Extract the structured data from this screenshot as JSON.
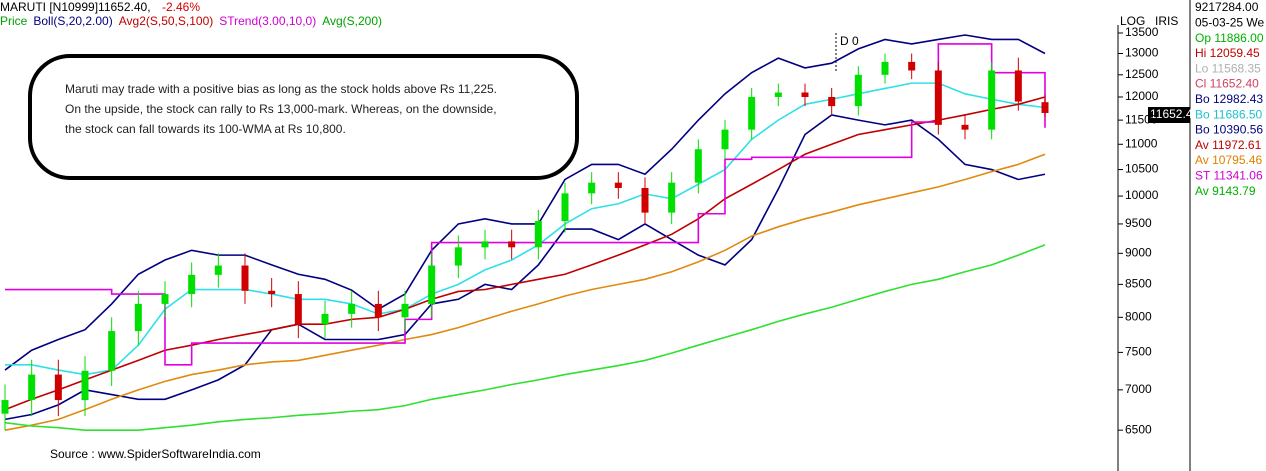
{
  "chart_data": {
    "type": "candlestick",
    "symbol": "MARUTI [N10999]11652.40,",
    "change": "-2.46%",
    "legend": [
      {
        "label": "Price",
        "color": "#00a000"
      },
      {
        "label": "Boll(S,20,2.00)",
        "color": "#000080"
      },
      {
        "label": "Avg2(S,50,S,100)",
        "color": "#c00000"
      },
      {
        "label": "STrend(3.00,10,0)",
        "color": "#d000d0"
      },
      {
        "label": "Avg(S,200)",
        "color": "#00a000"
      }
    ],
    "scale_labels": [
      "LOG",
      "IRIS"
    ],
    "marker": "D 0",
    "annotation": [
      "Maruti may trade with a positive bias as long as the stock holds above Rs 11,225.",
      "On the upside, the stock can rally to Rs 13,000-mark. Whereas, on the downside,",
      "the stock can fall towards its 100-WMA at Rs 10,800."
    ],
    "source": "Source : www.SpiderSoftwareIndia.com",
    "last_price": "11652.4",
    "info": [
      {
        "text": "9217284.00",
        "color": "#000000"
      },
      {
        "text": "05-03-25 We",
        "color": "#000000"
      },
      {
        "text": "Op 11886.00",
        "color": "#00b000"
      },
      {
        "text": "Hi 12059.45",
        "color": "#c00000"
      },
      {
        "text": "Lo 11568.35",
        "color": "#b0b0b0"
      },
      {
        "text": "Cl 11652.40",
        "color": "#d04060"
      },
      {
        "text": "Bo 12982.43",
        "color": "#000080"
      },
      {
        "text": "Bo 11686.50",
        "color": "#20c0d0"
      },
      {
        "text": "Bo 10390.56",
        "color": "#000080"
      },
      {
        "text": "Av 11972.61",
        "color": "#c00000"
      },
      {
        "text": "Av 10795.46",
        "color": "#e08000"
      },
      {
        "text": "ST 11341.06",
        "color": "#d000d0"
      },
      {
        "text": "Av  9143.79",
        "color": "#00b000"
      }
    ],
    "log_scale": true,
    "ylim": [
      6130,
      13700
    ],
    "yticks": [
      6500,
      7000,
      7500,
      8000,
      8500,
      9000,
      9500,
      10000,
      10500,
      11000,
      11500,
      12000,
      12500,
      13000,
      13500
    ],
    "up_color": "#00e000",
    "down_color": "#d00000",
    "candles": {
      "open": [
        6700,
        6870,
        7200,
        6870,
        7250,
        7800,
        8200,
        8350,
        8650,
        8800,
        8400,
        8350,
        7900,
        8050,
        8200,
        8000,
        8200,
        8800,
        9100,
        9200,
        9100,
        9550,
        10050,
        10250,
        10150,
        9700,
        10250,
        10900,
        11300,
        12000,
        12100,
        12000,
        11800,
        12500,
        12800,
        12600,
        11400,
        11300,
        12600,
        11886
      ],
      "high": [
        7070,
        7400,
        7400,
        7450,
        8000,
        8400,
        8550,
        8850,
        9000,
        9000,
        8600,
        8550,
        8250,
        8400,
        8400,
        8400,
        9000,
        9300,
        9400,
        9400,
        9750,
        10250,
        10450,
        10450,
        10350,
        10450,
        11100,
        11500,
        12200,
        12300,
        12300,
        12200,
        12700,
        13000,
        13000,
        12800,
        11600,
        12800,
        12900,
        12059
      ],
      "low": [
        6500,
        6670,
        6670,
        6670,
        7050,
        7600,
        8000,
        8150,
        8450,
        8200,
        8150,
        7700,
        7700,
        7850,
        7800,
        7800,
        8000,
        8600,
        8900,
        8900,
        8900,
        9350,
        9850,
        9950,
        9500,
        9500,
        10050,
        10700,
        11100,
        11800,
        11800,
        11600,
        11600,
        12300,
        12400,
        11200,
        11100,
        11100,
        11700,
        11568
      ],
      "close": [
        6870,
        7200,
        6870,
        7250,
        7800,
        8200,
        8350,
        8650,
        8800,
        8400,
        8350,
        7900,
        8050,
        8200,
        8000,
        8200,
        8800,
        9100,
        9200,
        9100,
        9550,
        10050,
        10250,
        10150,
        9700,
        10250,
        10900,
        11300,
        12000,
        12100,
        12000,
        11800,
        12500,
        12800,
        12600,
        11400,
        11300,
        12600,
        11900,
        11652
      ]
    },
    "series": [
      {
        "color": "#000080",
        "values": [
          7260,
          7530,
          7680,
          7820,
          8200,
          8660,
          8890,
          9050,
          8970,
          8970,
          8810,
          8660,
          8580,
          8410,
          8120,
          8350,
          9050,
          9500,
          9590,
          9500,
          9500,
          10310,
          10600,
          10600,
          10410,
          10900,
          11500,
          12070,
          12550,
          12890,
          12660,
          12770,
          13110,
          13340,
          13230,
          13340,
          13450,
          13340,
          13340,
          13000
        ]
      },
      {
        "color": "#30e0e8",
        "values": [
          7330,
          7330,
          7260,
          7200,
          7260,
          7600,
          8120,
          8420,
          8420,
          8420,
          8350,
          8270,
          8270,
          8200,
          8050,
          8120,
          8350,
          8500,
          8730,
          8890,
          9140,
          9500,
          9770,
          9860,
          10040,
          9950,
          10220,
          10500,
          11100,
          11500,
          11840,
          11950,
          12070,
          12190,
          12310,
          12310,
          12070,
          11950,
          11840,
          11770
        ]
      },
      {
        "color": "#000080",
        "values": [
          6630,
          6690,
          6810,
          7000,
          6940,
          6880,
          6880,
          7000,
          7130,
          7330,
          7820,
          7900,
          7680,
          7680,
          7680,
          7750,
          8200,
          8270,
          8500,
          8420,
          8810,
          9410,
          9410,
          9230,
          9500,
          9230,
          8970,
          8810,
          9230,
          10130,
          11200,
          11610,
          11500,
          11400,
          11500,
          11100,
          10600,
          10500,
          10310,
          10410
        ]
      },
      {
        "color": "#c00000",
        "values": [
          6750,
          6880,
          7000,
          7130,
          7260,
          7390,
          7530,
          7600,
          7680,
          7750,
          7820,
          7900,
          7900,
          7970,
          8000,
          8120,
          8270,
          8390,
          8420,
          8500,
          8580,
          8660,
          8810,
          8970,
          9140,
          9320,
          9590,
          9950,
          10220,
          10500,
          10800,
          11000,
          11200,
          11300,
          11400,
          11500,
          11610,
          11730,
          11840,
          12000
        ]
      },
      {
        "color": "#e08a10",
        "values": [
          6500,
          6560,
          6630,
          6750,
          6880,
          7000,
          7110,
          7200,
          7260,
          7330,
          7370,
          7390,
          7460,
          7530,
          7600,
          7680,
          7750,
          7850,
          7970,
          8090,
          8200,
          8320,
          8420,
          8500,
          8580,
          8700,
          8860,
          9050,
          9290,
          9450,
          9590,
          9710,
          9840,
          9950,
          10060,
          10170,
          10310,
          10460,
          10600,
          10800
        ]
      },
      {
        "color": "#30e030",
        "values": [
          6590,
          6550,
          6530,
          6500,
          6500,
          6500,
          6530,
          6560,
          6600,
          6630,
          6650,
          6680,
          6700,
          6730,
          6750,
          6800,
          6880,
          6940,
          7000,
          7070,
          7130,
          7200,
          7260,
          7320,
          7390,
          7490,
          7600,
          7710,
          7820,
          7940,
          8050,
          8150,
          8270,
          8390,
          8500,
          8580,
          8700,
          8810,
          8970,
          9140
        ]
      },
      {
        "color": "#e000e0",
        "step": true,
        "values": [
          8420,
          8420,
          8420,
          8420,
          8350,
          8350,
          7330,
          7630,
          7630,
          7630,
          7630,
          7630,
          7630,
          7630,
          7630,
          7970,
          9180,
          9180,
          9180,
          9180,
          9180,
          9180,
          9180,
          9180,
          9180,
          9180,
          9680,
          10700,
          10740,
          10740,
          10740,
          10740,
          10740,
          10740,
          11460,
          13230,
          13230,
          12550,
          12550,
          11340
        ]
      }
    ]
  }
}
